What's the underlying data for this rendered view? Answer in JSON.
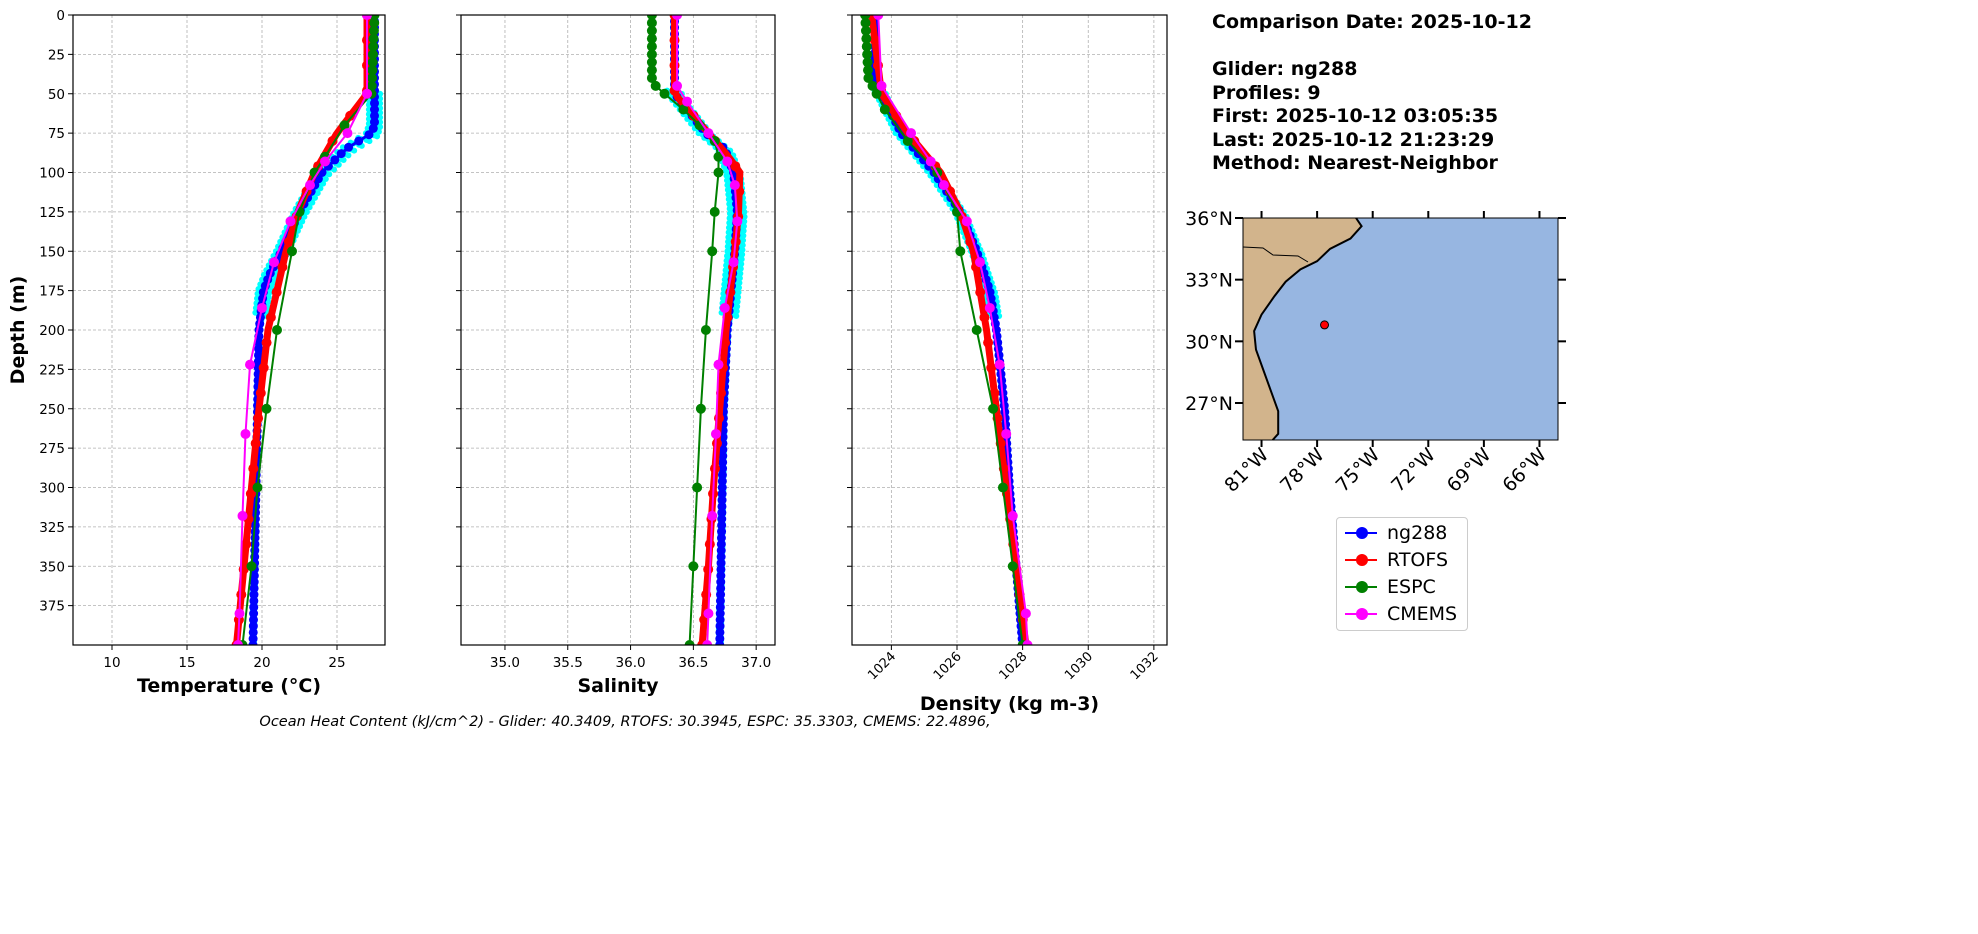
{
  "chart_data": [
    {
      "type": "line",
      "xlabel": "Temperature (°C)",
      "ylabel": "Depth (m)",
      "xlim": [
        7.4,
        28.2
      ],
      "ylim": [
        400,
        0
      ],
      "xticks": [
        10,
        15,
        20,
        25
      ],
      "yticks": [
        0,
        25,
        50,
        75,
        100,
        125,
        150,
        175,
        200,
        225,
        250,
        275,
        300,
        325,
        350,
        375
      ],
      "grid": true,
      "series": [
        {
          "name": "ng288",
          "depth": [
            0,
            40,
            70,
            75,
            85,
            100,
            125,
            150,
            165,
            175,
            200,
            250,
            300,
            350,
            400
          ],
          "values": [
            27.5,
            27.5,
            27.5,
            27.3,
            25.6,
            24.0,
            22.5,
            21.3,
            20.5,
            20.1,
            19.8,
            19.7,
            19.6,
            19.5,
            19.4
          ]
        },
        {
          "name": "RTOFS",
          "depth": [
            0,
            50,
            75,
            100,
            125,
            150,
            175,
            200,
            250,
            300,
            350,
            400
          ],
          "values": [
            27.0,
            27.0,
            25.0,
            23.5,
            22.4,
            21.6,
            21.0,
            20.4,
            19.8,
            19.3,
            18.8,
            18.3
          ]
        },
        {
          "name": "ESPC",
          "depth": [
            0,
            50,
            70,
            90,
            100,
            125,
            150,
            200,
            250,
            300,
            350,
            400
          ],
          "values": [
            27.5,
            27.3,
            25.5,
            24.2,
            23.5,
            22.5,
            22.0,
            21.0,
            20.3,
            19.7,
            19.3,
            18.7
          ]
        },
        {
          "name": "CMEMS",
          "depth": [
            0,
            50,
            75,
            93,
            108,
            131,
            157,
            186,
            222,
            266,
            318,
            380,
            400
          ],
          "values": [
            27.0,
            27.0,
            25.7,
            24.2,
            23.2,
            21.9,
            20.8,
            20.0,
            19.2,
            18.9,
            18.7,
            18.5,
            18.4
          ]
        }
      ]
    },
    {
      "type": "line",
      "xlabel": "Salinity",
      "ylabel": "",
      "xlim": [
        34.65,
        37.15
      ],
      "ylim": [
        400,
        0
      ],
      "xticks": [
        35.0,
        35.5,
        36.0,
        36.5,
        37.0
      ],
      "xticklabels": [
        "35.0",
        "35.5",
        "36.0",
        "36.5",
        "37.0"
      ],
      "grid": true,
      "series": [
        {
          "name": "ng288",
          "depth": [
            0,
            50,
            60,
            75,
            85,
            100,
            125,
            150,
            175,
            200,
            250,
            300,
            350,
            400
          ],
          "values": [
            36.35,
            36.35,
            36.45,
            36.6,
            36.75,
            36.82,
            36.85,
            36.83,
            36.8,
            36.77,
            36.74,
            36.73,
            36.72,
            36.71
          ]
        },
        {
          "name": "RTOFS",
          "depth": [
            0,
            50,
            75,
            90,
            100,
            125,
            150,
            200,
            250,
            300,
            350,
            400
          ],
          "values": [
            36.35,
            36.35,
            36.62,
            36.78,
            36.87,
            36.86,
            36.83,
            36.76,
            36.71,
            36.66,
            36.62,
            36.57
          ]
        },
        {
          "name": "ESPC",
          "depth": [
            0,
            40,
            45,
            50,
            60,
            70,
            80,
            90,
            100,
            125,
            150,
            200,
            250,
            300,
            350,
            400
          ],
          "values": [
            36.17,
            36.17,
            36.2,
            36.27,
            36.42,
            36.55,
            36.67,
            36.7,
            36.7,
            36.67,
            36.65,
            36.6,
            36.56,
            36.53,
            36.5,
            36.47
          ]
        },
        {
          "name": "CMEMS",
          "depth": [
            0,
            45,
            55,
            75,
            93,
            108,
            131,
            157,
            186,
            222,
            266,
            318,
            380,
            400
          ],
          "values": [
            36.37,
            36.37,
            36.45,
            36.62,
            36.77,
            36.83,
            36.85,
            36.82,
            36.75,
            36.7,
            36.68,
            36.65,
            36.62,
            36.61
          ]
        }
      ]
    },
    {
      "type": "line",
      "xlabel": "Density (kg m-3)",
      "ylabel": "",
      "xlim": [
        1022.8,
        1032.4
      ],
      "ylim": [
        400,
        0
      ],
      "xticks": [
        1024,
        1026,
        1028,
        1030,
        1032
      ],
      "grid": true,
      "series": [
        {
          "name": "ng288",
          "depth": [
            0,
            40,
            50,
            75,
            100,
            125,
            150,
            175,
            200,
            250,
            300,
            350,
            400
          ],
          "values": [
            1023.5,
            1023.5,
            1023.7,
            1024.3,
            1025.3,
            1026.1,
            1026.6,
            1027.0,
            1027.2,
            1027.45,
            1027.6,
            1027.8,
            1028.0
          ]
        },
        {
          "name": "RTOFS",
          "depth": [
            0,
            50,
            75,
            100,
            125,
            150,
            200,
            250,
            300,
            350,
            400
          ],
          "values": [
            1023.4,
            1023.7,
            1024.5,
            1025.5,
            1026.1,
            1026.5,
            1026.9,
            1027.2,
            1027.5,
            1027.8,
            1028.1
          ]
        },
        {
          "name": "ESPC",
          "depth": [
            0,
            40,
            60,
            80,
            100,
            125,
            150,
            200,
            250,
            300,
            350,
            400
          ],
          "values": [
            1023.2,
            1023.3,
            1023.8,
            1024.5,
            1025.4,
            1026.0,
            1026.1,
            1026.6,
            1027.1,
            1027.4,
            1027.7,
            1028.0
          ]
        },
        {
          "name": "CMEMS",
          "depth": [
            0,
            45,
            75,
            93,
            108,
            131,
            157,
            186,
            222,
            266,
            318,
            380,
            400
          ],
          "values": [
            1023.6,
            1023.7,
            1024.6,
            1025.2,
            1025.6,
            1026.3,
            1026.7,
            1027.0,
            1027.3,
            1027.5,
            1027.7,
            1028.1,
            1028.15
          ]
        }
      ]
    }
  ],
  "series_colors": {
    "ng288": "#0000ff",
    "RTOFS": "#ff0000",
    "ESPC": "#008000",
    "CMEMS": "#ff00ff",
    "individual_profiles": "#00ffff"
  },
  "map": {
    "lon_range": [
      -82,
      -65
    ],
    "lat_range": [
      25.2,
      36
    ],
    "lat_ticks": [
      36,
      33,
      30,
      27
    ],
    "lat_labels": [
      "36°N",
      "33°N",
      "30°N",
      "27°N"
    ],
    "lon_ticks": [
      -81,
      -78,
      -75,
      -72,
      -69,
      -66
    ],
    "lon_labels": [
      "81°W",
      "78°W",
      "75°W",
      "72°W",
      "69°W",
      "66°W"
    ],
    "land_color": "#d2b48c",
    "ocean_color": "#97b6e1",
    "coastline": [
      [
        -75.9,
        36
      ],
      [
        -75.6,
        35.6
      ],
      [
        -76.2,
        35
      ],
      [
        -77.3,
        34.5
      ],
      [
        -78.0,
        33.9
      ],
      [
        -78.9,
        33.5
      ],
      [
        -79.7,
        32.9
      ],
      [
        -80.3,
        32.2
      ],
      [
        -81.0,
        31.3
      ],
      [
        -81.4,
        30.5
      ],
      [
        -81.3,
        29.6
      ],
      [
        -80.9,
        28.6
      ],
      [
        -80.5,
        27.6
      ],
      [
        -80.1,
        26.6
      ],
      [
        -80.1,
        25.5
      ],
      [
        -80.4,
        25.2
      ]
    ],
    "glider_position": [
      -77.6,
      30.8
    ]
  },
  "info": {
    "comparison_date": "Comparison Date: 2025-10-12",
    "glider": "Glider: ng288",
    "profiles": "Profiles: 9",
    "first": "First: 2025-10-12 03:05:35",
    "last": "Last: 2025-10-12 21:23:29",
    "method": "Method: Nearest-Neighbor"
  },
  "legend": [
    "ng288",
    "RTOFS",
    "ESPC",
    "CMEMS"
  ],
  "caption": "Ocean Heat Content (kJ/cm^2) - Glider: 40.3409,  RTOFS: 30.3945,  ESPC: 35.3303,  CMEMS: 22.4896,"
}
